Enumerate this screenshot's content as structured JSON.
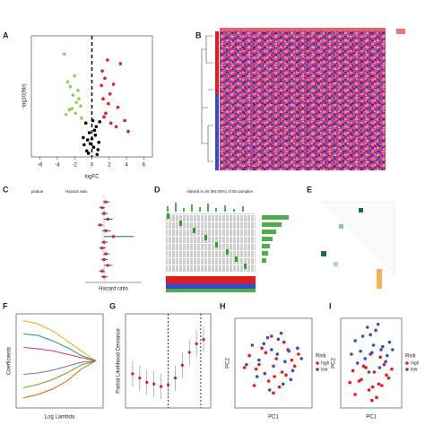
{
  "chart_data": [
    {
      "type": "scatter",
      "label": "A",
      "x_label": "logFC",
      "y_label": "-log10(fdr)",
      "xlim": [
        -7,
        7
      ],
      "xticks": [
        -6,
        -4,
        -2,
        0,
        2,
        4,
        6
      ],
      "ylim": [
        0,
        10
      ],
      "vline": 0,
      "series": [
        {
          "color": "#8fd14f",
          "x": [
            -3.2,
            -2.8,
            -2.5,
            -2.2,
            -2.0,
            -1.8,
            -1.5,
            -1.3,
            -2.6,
            -1.9,
            -1.6,
            -2.3,
            -1.2,
            -3.0
          ],
          "values": [
            8.5,
            6.2,
            5.8,
            5.1,
            6.7,
            4.5,
            4.8,
            4.2,
            3.9,
            3.6,
            5.5,
            4.0,
            3.2,
            3.5
          ]
        },
        {
          "color": "#000000",
          "x": [
            -0.9,
            -0.6,
            -0.3,
            0,
            0.2,
            0.5,
            0.8,
            -0.7,
            -0.4,
            0.1,
            0.4,
            0.7,
            -0.2,
            0.3,
            -1.0,
            0.9,
            0.6,
            -0.5
          ],
          "values": [
            1.0,
            0.5,
            2.0,
            1.5,
            0.8,
            2.5,
            1.2,
            2.8,
            0.3,
            3.0,
            1.8,
            0.6,
            1.1,
            2.2,
            1.6,
            2.9,
            0.2,
            1.4
          ]
        },
        {
          "color": "#e41a1c",
          "x": [
            1.2,
            1.5,
            1.8,
            2.1,
            2.5,
            3.0,
            3.8,
            4.2,
            1.3,
            1.6,
            2.2,
            1.1,
            2.8,
            1.4,
            1.9,
            3.3
          ],
          "values": [
            7.1,
            6.5,
            8.0,
            5.2,
            6.0,
            4.1,
            3.0,
            2.1,
            4.8,
            3.6,
            2.8,
            5.9,
            2.5,
            3.3,
            4.4,
            7.7
          ]
        }
      ]
    },
    {
      "type": "heatmap",
      "label": "B"
    },
    {
      "type": "forest",
      "label": "C",
      "headers": [
        "pvalue",
        "Hazard ratio"
      ],
      "x_label": "Hazard ratio",
      "xlim": [
        0,
        3
      ],
      "vline": 1,
      "color": "#d62728",
      "values": [
        1.1,
        0.9,
        1.0,
        1.2,
        0.8,
        1.1,
        1.5,
        1.0,
        0.9,
        1.1,
        1.0,
        1.2,
        0.9,
        1.0
      ],
      "lower": [
        0.95,
        0.75,
        0.85,
        1.0,
        0.65,
        0.9,
        1.0,
        0.85,
        0.75,
        0.95,
        0.85,
        1.0,
        0.75,
        0.85
      ],
      "upper": [
        1.3,
        1.05,
        1.2,
        1.45,
        0.95,
        1.35,
        2.6,
        1.2,
        1.1,
        1.3,
        1.2,
        1.45,
        1.05,
        1.2
      ]
    },
    {
      "type": "oncoplot",
      "label": "D",
      "title": "Altered in 40 (80.00%) of 50 samples"
    },
    {
      "type": "correlation",
      "label": "E"
    },
    {
      "type": "line",
      "label": "F",
      "x_label": "Log Lambda",
      "y_label": "Coefficients",
      "xlim": [
        -7.5,
        -1.5
      ],
      "ylim": [
        -0.7,
        0.7
      ],
      "x": [
        -7,
        -6,
        -5,
        -4,
        -3,
        -2
      ],
      "series": [
        {
          "color": "#e6ab02",
          "values": [
            0.6,
            0.55,
            0.45,
            0.3,
            0.15,
            0
          ]
        },
        {
          "color": "#1b9e77",
          "values": [
            0.4,
            0.38,
            0.3,
            0.2,
            0.08,
            0
          ]
        },
        {
          "color": "#e7298a",
          "values": [
            0.2,
            0.18,
            0.15,
            0.1,
            0.05,
            0
          ]
        },
        {
          "color": "#7570b3",
          "values": [
            -0.2,
            -0.18,
            -0.14,
            -0.08,
            -0.02,
            0
          ]
        },
        {
          "color": "#66a61e",
          "values": [
            -0.4,
            -0.35,
            -0.28,
            -0.18,
            -0.06,
            0
          ]
        },
        {
          "color": "#d95f02",
          "values": [
            -0.55,
            -0.5,
            -0.42,
            -0.3,
            -0.12,
            0
          ]
        }
      ]
    },
    {
      "type": "errorbar",
      "label": "G",
      "y_label": "Partial Likelihood Deviance",
      "xlim": [
        -7.5,
        -1.5
      ],
      "ylim": [
        12.2,
        13.3
      ],
      "color": "#e41a1c",
      "vlines": [
        -4.5,
        -2.2
      ],
      "x": [
        -7,
        -6.5,
        -6,
        -5.5,
        -5,
        -4.5,
        -4,
        -3.5,
        -3,
        -2.5,
        -2
      ],
      "values": [
        12.6,
        12.55,
        12.5,
        12.48,
        12.45,
        12.47,
        12.55,
        12.7,
        12.85,
        12.95,
        13.0
      ],
      "err": [
        0.15,
        0.15,
        0.15,
        0.15,
        0.15,
        0.15,
        0.15,
        0.15,
        0.15,
        0.15,
        0.15
      ]
    },
    {
      "type": "scatter",
      "label": "H",
      "x_label": "PC1",
      "y_label": "PC2",
      "legend_title": "Risk",
      "xlim": [
        -4,
        4
      ],
      "ylim": [
        -3,
        3
      ],
      "series": [
        {
          "name": "high",
          "color": "#e41a1c",
          "x": [
            -2.5,
            -1.8,
            -1.2,
            -0.5,
            0.3,
            0.9,
            1.5,
            2.2,
            -2.0,
            -0.8,
            0.1,
            1.1,
            1.9,
            -1.5,
            -0.2,
            0.6,
            1.3,
            2.6,
            -3.0,
            0.0
          ],
          "values": [
            0.5,
            -0.4,
            1.0,
            -1.2,
            0.3,
            -0.6,
            0.9,
            -0.2,
            -1.5,
            0.7,
            -0.9,
            1.4,
            0.2,
            -0.1,
            1.8,
            -1.6,
            -0.8,
            0.6,
            -0.3,
            -2.0
          ]
        },
        {
          "name": "low",
          "color": "#3b4cc0",
          "x": [
            -2.2,
            -1.5,
            -0.9,
            -0.2,
            0.5,
            1.2,
            1.8,
            2.5,
            -1.7,
            -0.6,
            0.4,
            1.0,
            2.0,
            -1.0,
            0.0,
            0.8,
            1.6,
            -2.8,
            2.9,
            -0.4
          ],
          "values": [
            1.2,
            0.2,
            -0.7,
            0.9,
            1.6,
            0.1,
            -1.1,
            1.0,
            -0.9,
            1.7,
            0.6,
            -1.4,
            -0.5,
            1.3,
            -0.2,
            2.0,
            0.8,
            -0.1,
            0.3,
            -1.8
          ]
        }
      ]
    },
    {
      "type": "scatter",
      "label": "I",
      "x_label": "PC1",
      "y_label": "PC2",
      "legend_title": "Risk",
      "xlim": [
        -4,
        4
      ],
      "ylim": [
        -3,
        3
      ],
      "series": [
        {
          "name": "high",
          "color": "#e41a1c",
          "x": [
            -2.4,
            -1.6,
            -1.0,
            -0.3,
            0.4,
            1.0,
            1.7,
            2.3,
            -2.1,
            -0.7,
            0.2,
            1.2,
            2.0,
            -1.3,
            -0.1,
            0.7,
            1.4,
            2.7,
            -2.8,
            0.1
          ],
          "values": [
            -0.5,
            -1.2,
            -0.2,
            -1.8,
            -0.6,
            -1.4,
            -0.1,
            -1.0,
            -2.1,
            -0.3,
            -1.6,
            0.4,
            -0.8,
            -1.1,
            0.6,
            -2.3,
            -1.5,
            -0.4,
            -1.3,
            -2.5
          ]
        },
        {
          "name": "low",
          "color": "#3b4cc0",
          "x": [
            -2.1,
            -1.4,
            -0.8,
            -0.1,
            0.6,
            1.3,
            1.9,
            2.4,
            -1.8,
            -0.5,
            0.3,
            1.1,
            2.1,
            -1.1,
            0.1,
            0.9,
            1.5,
            -2.6,
            2.8,
            -0.3
          ],
          "values": [
            1.5,
            0.8,
            0.3,
            1.9,
            2.2,
            0.9,
            0.1,
            1.4,
            0.0,
            2.4,
            1.2,
            -0.3,
            0.5,
            1.8,
            0.7,
            2.6,
            1.1,
            0.6,
            0.9,
            -0.6
          ]
        }
      ]
    }
  ]
}
